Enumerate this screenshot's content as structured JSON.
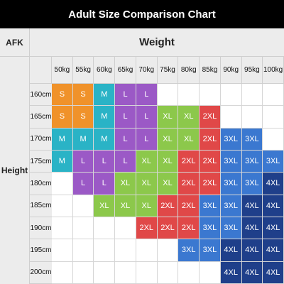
{
  "title": "Adult Size Comparison Chart",
  "brand": "AFK",
  "weight_header": "Weight",
  "height_header": "Height",
  "colors": {
    "S": "#f0922a",
    "M": "#2ab3c6",
    "L": "#9b59c6",
    "XL": "#8cc84b",
    "2XL": "#e04848",
    "3XL": "#3b78d0",
    "4XL": "#1f3f8a",
    "empty": "#ffffff"
  },
  "weights": [
    "50kg",
    "55kg",
    "60kg",
    "65kg",
    "70kg",
    "75kg",
    "80kg",
    "85kg",
    "90kg",
    "95kg",
    "100kg"
  ],
  "heights": [
    "160cm",
    "165cm",
    "170cm",
    "175cm",
    "180cm",
    "185cm",
    "190cm",
    "195cm",
    "200cm"
  ],
  "sizes": [
    [
      "S",
      "S",
      "M",
      "L",
      "L",
      "",
      "",
      "",
      "",
      "",
      ""
    ],
    [
      "S",
      "S",
      "M",
      "L",
      "L",
      "XL",
      "XL",
      "2XL",
      "",
      "",
      ""
    ],
    [
      "M",
      "M",
      "M",
      "L",
      "L",
      "XL",
      "XL",
      "2XL",
      "3XL",
      "3XL",
      ""
    ],
    [
      "M",
      "L",
      "L",
      "L",
      "XL",
      "XL",
      "2XL",
      "2XL",
      "3XL",
      "3XL",
      "3XL"
    ],
    [
      "",
      "L",
      "L",
      "XL",
      "XL",
      "XL",
      "2XL",
      "2XL",
      "3XL",
      "3XL",
      "4XL"
    ],
    [
      "",
      "",
      "XL",
      "XL",
      "XL",
      "2XL",
      "2XL",
      "3XL",
      "3XL",
      "4XL",
      "4XL"
    ],
    [
      "",
      "",
      "",
      "",
      "2XL",
      "2XL",
      "2XL",
      "3XL",
      "3XL",
      "4XL",
      "4XL"
    ],
    [
      "",
      "",
      "",
      "",
      "",
      "",
      "3XL",
      "3XL",
      "4XL",
      "4XL",
      "4XL"
    ],
    [
      "",
      "",
      "",
      "",
      "",
      "",
      "",
      "",
      "4XL",
      "4XL",
      "4XL"
    ]
  ]
}
